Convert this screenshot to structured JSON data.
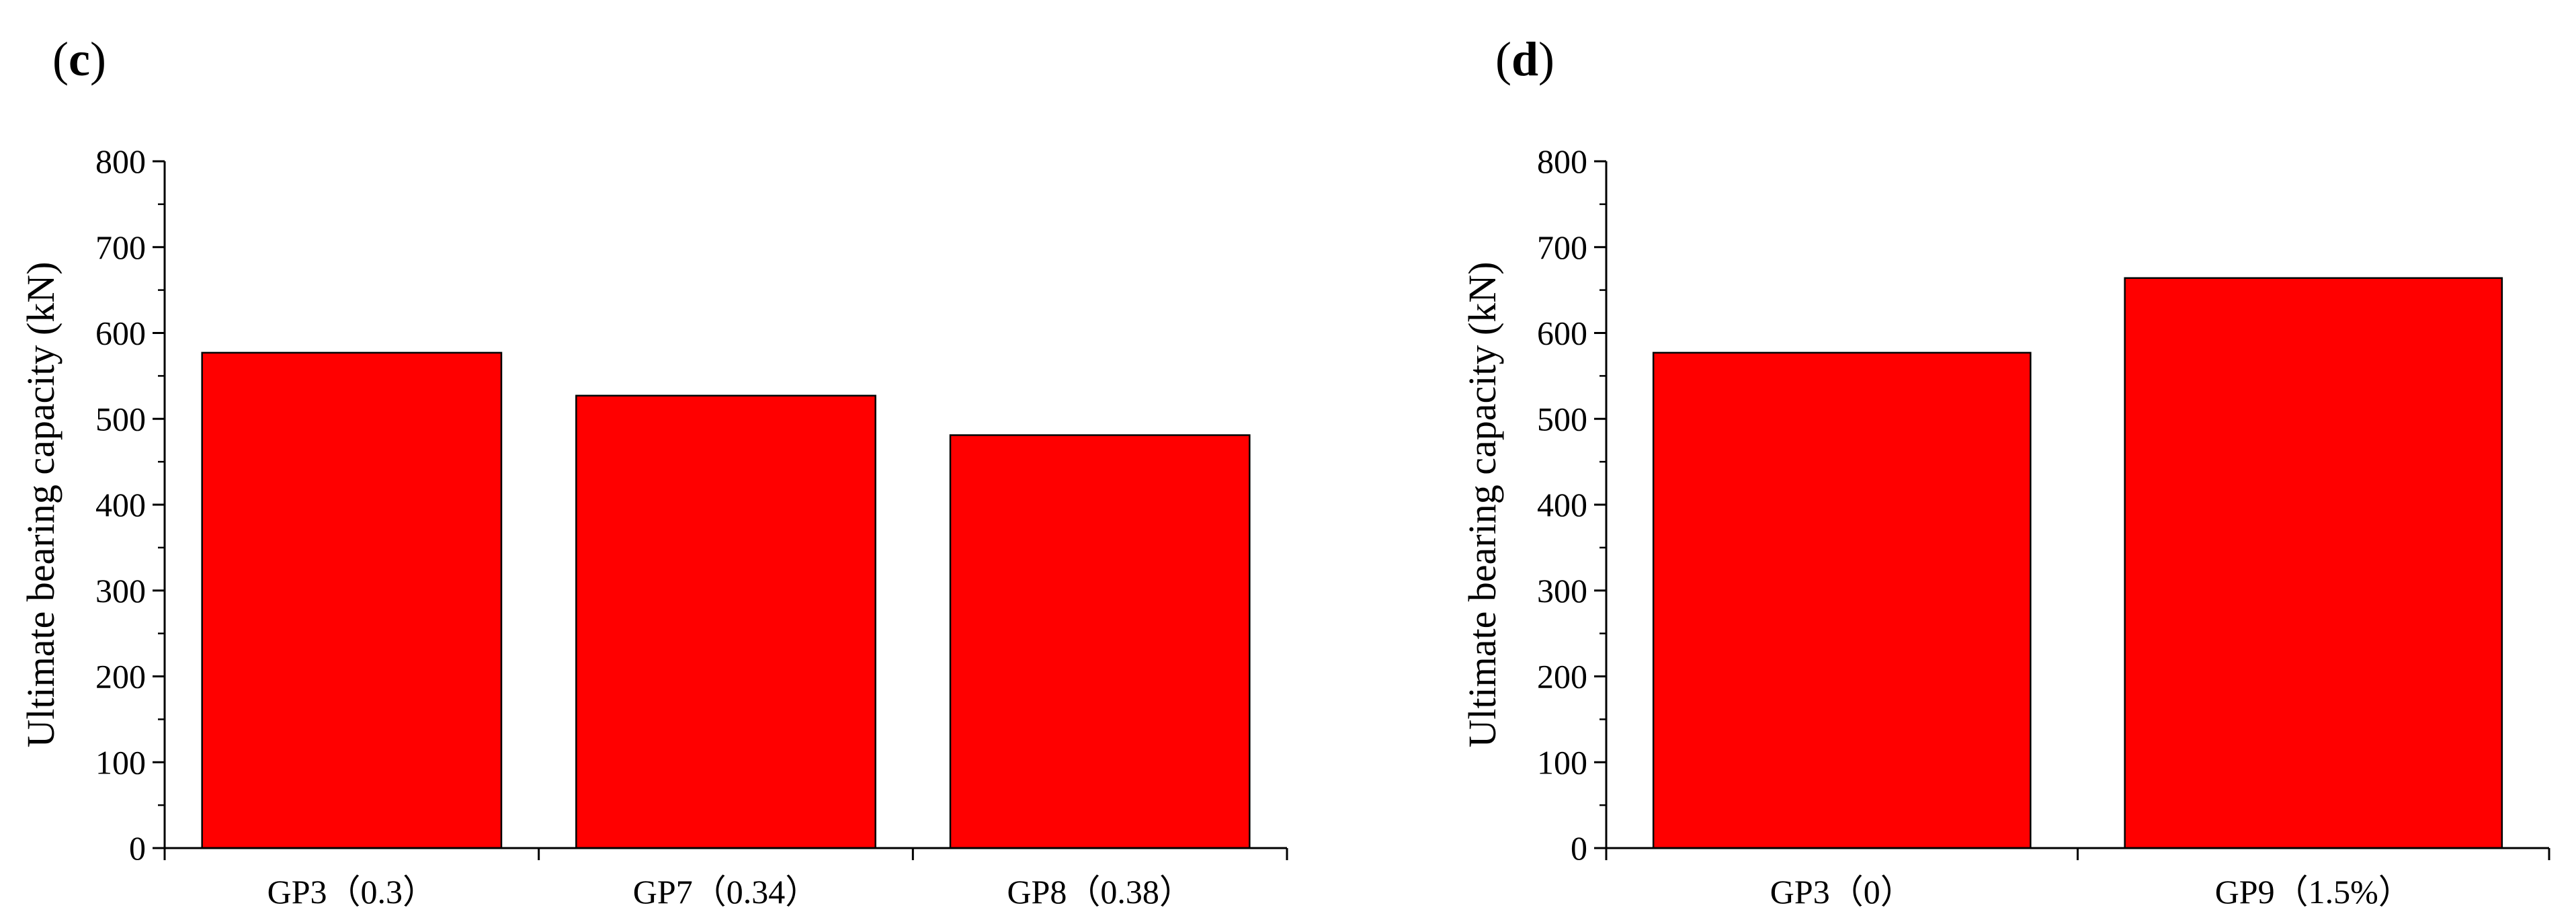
{
  "chart_data": [
    {
      "type": "bar",
      "panel_label": "c",
      "title": "",
      "xlabel": "",
      "ylabel": "Ultimate bearing capacity (kN)",
      "categories": [
        "GP3（0.3）",
        "GP7（0.34）",
        "GP8（0.38）"
      ],
      "values": [
        577,
        527,
        481
      ],
      "ylim": [
        0,
        800
      ],
      "yticks": [
        0,
        100,
        200,
        300,
        400,
        500,
        600,
        700,
        800
      ],
      "bar_color": "#ff0000",
      "grid": false
    },
    {
      "type": "bar",
      "panel_label": "d",
      "title": "",
      "xlabel": "",
      "ylabel": "Ultimate bearing capacity (kN)",
      "categories": [
        "GP3（0）",
        "GP9（1.5%）"
      ],
      "values": [
        577,
        664
      ],
      "ylim": [
        0,
        800
      ],
      "yticks": [
        0,
        100,
        200,
        300,
        400,
        500,
        600,
        700,
        800
      ],
      "bar_color": "#ff0000",
      "grid": false
    }
  ]
}
